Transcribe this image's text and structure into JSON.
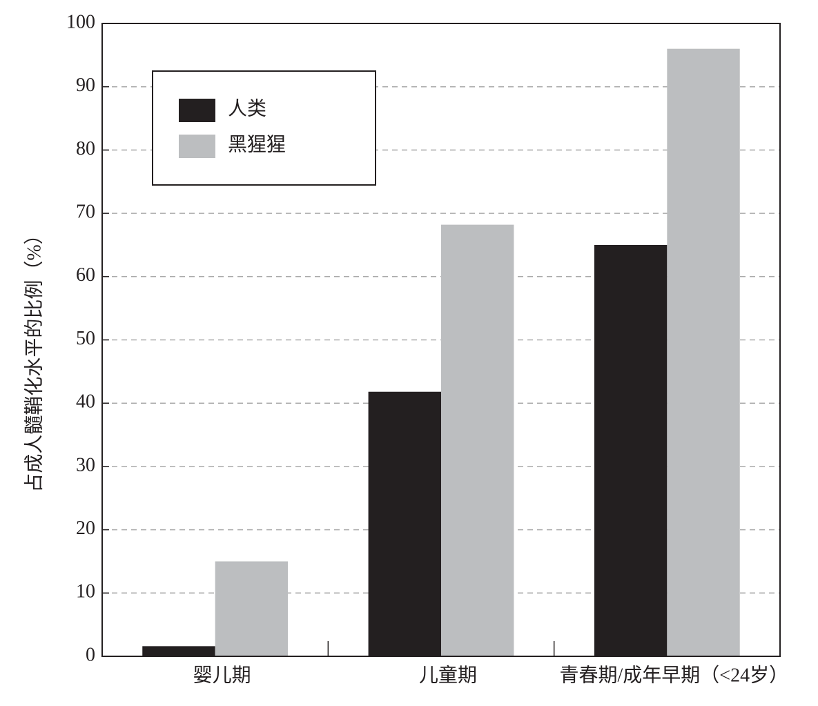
{
  "chart_data": {
    "type": "bar",
    "y_label": "占成人髓鞘化水平的比例（%）",
    "categories": [
      "婴儿期",
      "儿童期",
      "青春期/成年早期（<24岁）"
    ],
    "series": [
      {
        "name": "人类",
        "color": "#231f20",
        "values": [
          1.6,
          41.8,
          65
        ]
      },
      {
        "name": "黑猩猩",
        "color": "#bcbec0",
        "values": [
          15,
          68.2,
          96
        ]
      }
    ],
    "ylim": [
      0,
      100
    ],
    "yticks": [
      0,
      10,
      20,
      30,
      40,
      50,
      60,
      70,
      80,
      90,
      100
    ],
    "grid": true,
    "legend": "upper left"
  }
}
